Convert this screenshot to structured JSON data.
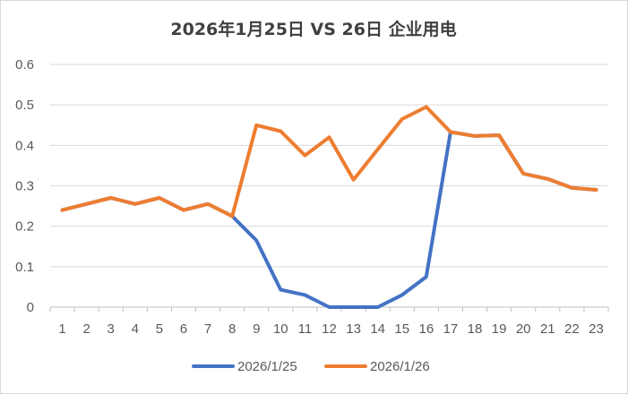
{
  "chart_data": {
    "type": "line",
    "title": "2026年1月25日 VS 26日 企业用电",
    "xlabel": "",
    "ylabel": "",
    "categories": [
      "1",
      "2",
      "3",
      "4",
      "5",
      "6",
      "7",
      "8",
      "9",
      "10",
      "11",
      "12",
      "13",
      "14",
      "15",
      "16",
      "17",
      "18",
      "19",
      "20",
      "21",
      "22",
      "23"
    ],
    "y_ticks": [
      "0",
      "0.1",
      "0.2",
      "0.3",
      "0.4",
      "0.5",
      "0.6"
    ],
    "ylim": [
      0,
      0.6
    ],
    "grid": "horizontal",
    "legend_position": "bottom",
    "series": [
      {
        "name": "2026/1/25",
        "color": "#4472C4",
        "values": [
          0.24,
          0.255,
          0.27,
          0.255,
          0.27,
          0.24,
          0.255,
          0.225,
          0.165,
          0.043,
          0.03,
          0.0,
          0.0,
          0.0,
          0.03,
          0.075,
          0.433,
          0.423,
          0.425,
          0.33,
          0.317,
          0.295,
          0.29
        ]
      },
      {
        "name": "2026/1/26",
        "color": "#ED7D31",
        "values": [
          0.24,
          0.255,
          0.27,
          0.255,
          0.27,
          0.24,
          0.255,
          0.225,
          0.45,
          0.435,
          0.375,
          0.42,
          0.315,
          0.39,
          0.465,
          0.495,
          0.433,
          0.423,
          0.425,
          0.33,
          0.317,
          0.295,
          0.29
        ]
      }
    ]
  }
}
